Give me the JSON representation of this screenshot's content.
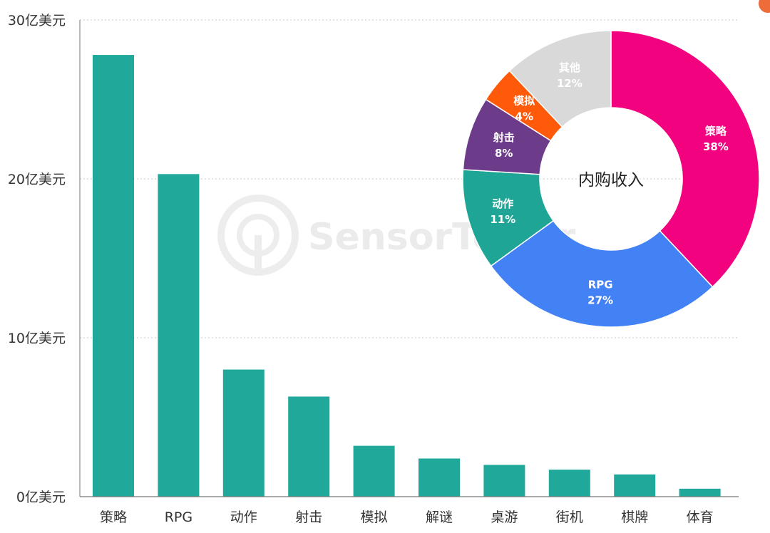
{
  "chart_data": [
    {
      "type": "bar",
      "categories": [
        "策略",
        "RPG",
        "动作",
        "射击",
        "模拟",
        "解谜",
        "桌游",
        "街机",
        "棋牌",
        "体育"
      ],
      "values": [
        27.8,
        20.3,
        8.0,
        6.3,
        3.2,
        2.4,
        2.0,
        1.7,
        1.4,
        0.5
      ],
      "ylim": [
        0,
        30
      ],
      "yticks": [
        0,
        10,
        20,
        30
      ],
      "ytick_labels": [
        "0亿美元",
        "10亿美元",
        "20亿美元",
        "30亿美元"
      ],
      "grid": true,
      "colors": {
        "bar": "#20a99a",
        "grid": "#c8c8c8",
        "axis": "#777777"
      }
    },
    {
      "type": "pie",
      "center_label": "内购收入",
      "slices": [
        {
          "label": "策略",
          "value": 38,
          "pct_label": "38%",
          "color": "#f2027f"
        },
        {
          "label": "RPG",
          "value": 27,
          "pct_label": "27%",
          "color": "#4282f5"
        },
        {
          "label": "动作",
          "value": 11,
          "pct_label": "11%",
          "color": "#1ea595"
        },
        {
          "label": "射击",
          "value": 8,
          "pct_label": "8%",
          "color": "#6c3c8b"
        },
        {
          "label": "模拟",
          "value": 4,
          "pct_label": "4%",
          "color": "#ff5a0a"
        },
        {
          "label": "其他",
          "value": 12,
          "pct_label": "12%",
          "color": "#d9d9d9"
        }
      ]
    }
  ],
  "watermark": {
    "text": "SensorTower"
  }
}
